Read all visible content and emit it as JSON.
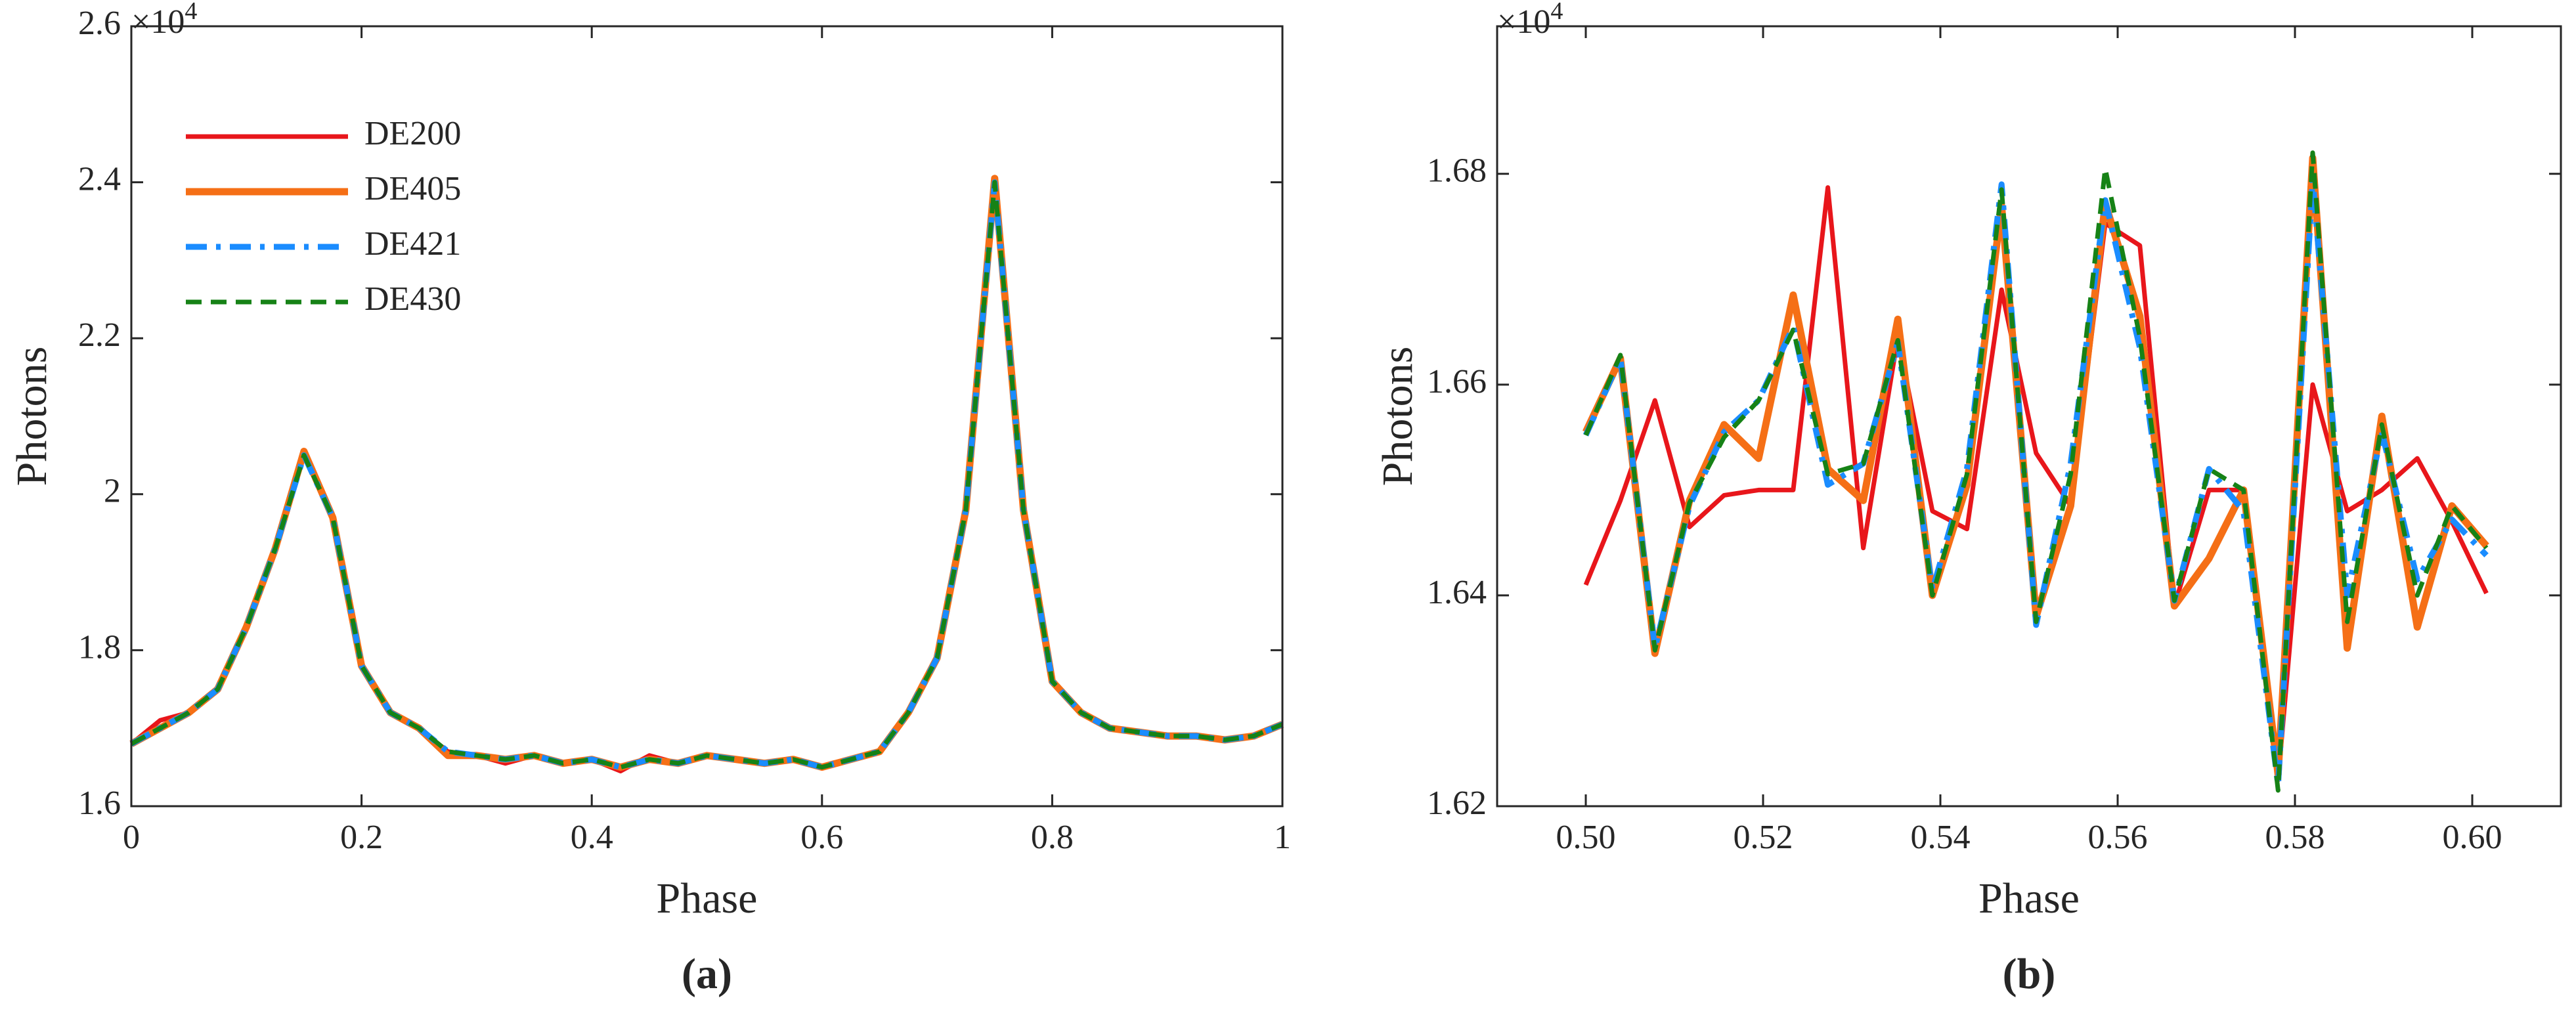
{
  "chart_data": [
    {
      "type": "line",
      "xlabel": "Phase",
      "ylabel": "Photons",
      "caption": "(a)",
      "y_exponent_base": "×10",
      "y_exponent": "4",
      "xlim": [
        0,
        1
      ],
      "ylim": [
        1.6,
        2.6
      ],
      "xticks": [
        0,
        0.2,
        0.4,
        0.6,
        0.8,
        1
      ],
      "yticks": [
        1.6,
        1.8,
        2,
        2.2,
        2.4,
        2.6
      ],
      "legend": "upper left",
      "x": [
        0,
        0.025,
        0.05,
        0.075,
        0.1,
        0.125,
        0.15,
        0.175,
        0.2,
        0.225,
        0.25,
        0.275,
        0.3,
        0.325,
        0.35,
        0.375,
        0.4,
        0.425,
        0.45,
        0.475,
        0.5,
        0.525,
        0.55,
        0.575,
        0.6,
        0.625,
        0.65,
        0.675,
        0.7,
        0.725,
        0.75,
        0.775,
        0.8,
        0.825,
        0.85,
        0.875,
        0.9,
        0.925,
        0.95,
        0.975,
        1
      ],
      "series": [
        {
          "name": "DE200",
          "color": "#e8161b",
          "linestyle": "-",
          "linewidth": 7,
          "values": [
            1.68,
            1.71,
            1.72,
            1.75,
            1.83,
            1.93,
            2.05,
            1.97,
            1.78,
            1.72,
            1.7,
            1.67,
            1.665,
            1.655,
            1.665,
            1.655,
            1.66,
            1.645,
            1.665,
            1.655,
            1.665,
            1.66,
            1.655,
            1.66,
            1.65,
            1.66,
            1.67,
            1.72,
            1.79,
            1.98,
            2.4,
            1.98,
            1.76,
            1.72,
            1.7,
            1.695,
            1.69,
            1.69,
            1.685,
            1.69,
            1.705
          ]
        },
        {
          "name": "DE405",
          "color": "#f56f16",
          "linestyle": "-",
          "linewidth": 11,
          "values": [
            1.68,
            1.7,
            1.72,
            1.75,
            1.83,
            1.93,
            2.055,
            1.97,
            1.78,
            1.72,
            1.7,
            1.665,
            1.665,
            1.66,
            1.665,
            1.655,
            1.66,
            1.65,
            1.66,
            1.655,
            1.665,
            1.66,
            1.655,
            1.66,
            1.65,
            1.66,
            1.67,
            1.72,
            1.79,
            1.98,
            2.405,
            1.98,
            1.76,
            1.72,
            1.7,
            1.695,
            1.69,
            1.69,
            1.685,
            1.69,
            1.705
          ]
        },
        {
          "name": "DE421",
          "color": "#1a8cff",
          "linestyle": "-.",
          "linewidth": 9,
          "values": [
            1.68,
            1.7,
            1.72,
            1.75,
            1.83,
            1.93,
            2.05,
            1.97,
            1.78,
            1.72,
            1.7,
            1.67,
            1.665,
            1.66,
            1.665,
            1.655,
            1.66,
            1.65,
            1.66,
            1.655,
            1.665,
            1.66,
            1.655,
            1.66,
            1.65,
            1.66,
            1.67,
            1.72,
            1.79,
            1.98,
            2.4,
            1.98,
            1.76,
            1.72,
            1.7,
            1.695,
            1.69,
            1.69,
            1.685,
            1.69,
            1.705
          ]
        },
        {
          "name": "DE430",
          "color": "#168216",
          "linestyle": "--",
          "linewidth": 7,
          "values": [
            1.68,
            1.7,
            1.72,
            1.75,
            1.83,
            1.93,
            2.05,
            1.97,
            1.78,
            1.72,
            1.7,
            1.67,
            1.665,
            1.66,
            1.665,
            1.655,
            1.66,
            1.65,
            1.66,
            1.655,
            1.665,
            1.66,
            1.655,
            1.66,
            1.65,
            1.66,
            1.67,
            1.72,
            1.79,
            1.98,
            2.4,
            1.98,
            1.76,
            1.72,
            1.7,
            1.695,
            1.69,
            1.69,
            1.685,
            1.69,
            1.705
          ]
        }
      ]
    },
    {
      "type": "line",
      "xlabel": "Phase",
      "ylabel": "Photons",
      "caption": "(b)",
      "y_exponent_base": "×10",
      "y_exponent": "4",
      "xlim": [
        0.49,
        0.61
      ],
      "ylim": [
        1.62,
        1.694
      ],
      "xticks": [
        {
          "value": 0.5,
          "label": "0.50"
        },
        0.52,
        0.54,
        0.56,
        0.58,
        {
          "value": 0.6,
          "label": "0.60"
        }
      ],
      "yticks": [
        1.62,
        1.64,
        1.66,
        1.68
      ],
      "x": [
        0.5,
        0.5039,
        0.5078,
        0.5117,
        0.5156,
        0.5195,
        0.5234,
        0.5273,
        0.5313,
        0.5352,
        0.5391,
        0.543,
        0.5469,
        0.5508,
        0.5547,
        0.5586,
        0.5625,
        0.5664,
        0.5703,
        0.5742,
        0.5781,
        0.582,
        0.5859,
        0.5898,
        0.5938,
        0.5977,
        0.6016
      ],
      "series": [
        {
          "name": "DE200",
          "color": "#e8161b",
          "linestyle": "-",
          "linewidth": 7,
          "values": [
            1.641,
            1.649,
            1.6585,
            1.6465,
            1.6495,
            1.65,
            1.65,
            1.6787,
            1.6445,
            1.6645,
            1.648,
            1.6463,
            1.669,
            1.6535,
            1.6485,
            1.6753,
            1.6732,
            1.639,
            1.65,
            1.65,
            1.6225,
            1.66,
            1.648,
            1.65,
            1.653,
            1.647,
            1.6402
          ]
        },
        {
          "name": "DE405",
          "color": "#f56f16",
          "linestyle": "-",
          "linewidth": 11,
          "values": [
            1.6555,
            1.6625,
            1.6345,
            1.649,
            1.6562,
            1.653,
            1.6685,
            1.652,
            1.649,
            1.6662,
            1.64,
            1.6505,
            1.677,
            1.638,
            1.6485,
            1.6772,
            1.6665,
            1.639,
            1.6435,
            1.65,
            1.623,
            1.6815,
            1.635,
            1.657,
            1.637,
            1.6485,
            1.6447
          ]
        },
        {
          "name": "DE421",
          "color": "#1a8cff",
          "linestyle": "-.",
          "linewidth": 9,
          "values": [
            1.6552,
            1.6625,
            1.635,
            1.6485,
            1.6555,
            1.6585,
            1.6655,
            1.6505,
            1.6525,
            1.664,
            1.6405,
            1.652,
            1.679,
            1.6372,
            1.6525,
            1.6775,
            1.6635,
            1.6395,
            1.652,
            1.648,
            1.622,
            1.6795,
            1.64,
            1.6555,
            1.6415,
            1.6472,
            1.6438
          ]
        },
        {
          "name": "DE430",
          "color": "#168216",
          "linestyle": "--",
          "linewidth": 7,
          "values": [
            1.6552,
            1.6628,
            1.6348,
            1.6488,
            1.655,
            1.6585,
            1.6652,
            1.6515,
            1.6525,
            1.6642,
            1.64,
            1.6515,
            1.6785,
            1.6375,
            1.6515,
            1.6805,
            1.6645,
            1.6395,
            1.652,
            1.65,
            1.6215,
            1.682,
            1.6375,
            1.6562,
            1.64,
            1.6485,
            1.6445
          ]
        }
      ]
    }
  ]
}
